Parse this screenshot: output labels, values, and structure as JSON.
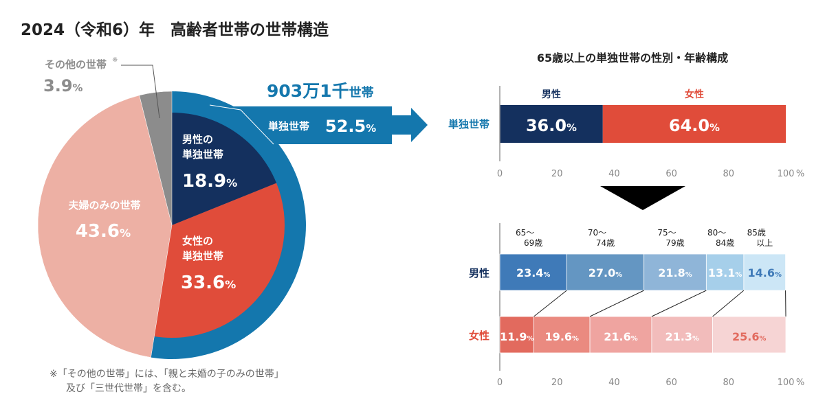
{
  "title": "2024（令和6）年　高齢者世帯の世帯構造",
  "footnote": [
    "※「その他の世帯」には、「親と未婚の子のみの世帯」",
    "及び「三世代世帯」を含む。"
  ],
  "chart_data": [
    {
      "type": "pie",
      "slices": [
        {
          "label": [
            "男性の",
            "単独世帯"
          ],
          "value": 18.9,
          "color": "#14305e"
        },
        {
          "label": [
            "女性の",
            "単独世帯"
          ],
          "value": 33.6,
          "color": "#e04c3a"
        },
        {
          "label": [
            "夫婦のみの世帯"
          ],
          "value": 43.6,
          "color": "#edb0a4"
        },
        {
          "label": [
            "その他の世帯"
          ],
          "value": 3.9,
          "color": "#8c8c8c",
          "mark": "※"
        }
      ],
      "ring": {
        "label": "単独世帯",
        "value": 52.5,
        "count": "903万1千",
        "count_unit": "世帯",
        "color": "#1477ad"
      }
    },
    {
      "type": "bar",
      "stacked": true,
      "orientation": "horizontal",
      "title": "65歳以上の単独世帯の性別・年齢構成",
      "categories": [
        "単独世帯"
      ],
      "series": [
        {
          "name": "男性",
          "values": [
            36.0
          ],
          "color": "#14305e"
        },
        {
          "name": "女性",
          "values": [
            64.0
          ],
          "color": "#e04c3a"
        }
      ],
      "xlim": [
        0,
        100
      ],
      "xticks": [
        "0",
        "20",
        "40",
        "60",
        "80",
        "100"
      ],
      "xunit": "%"
    },
    {
      "type": "bar",
      "stacked": true,
      "orientation": "horizontal",
      "categories": [
        "男性",
        "女性"
      ],
      "age_groups": [
        [
          "65～",
          "69歳"
        ],
        [
          "70～",
          "74歳"
        ],
        [
          "75～",
          "79歳"
        ],
        [
          "80～",
          "84歳"
        ],
        [
          "85歳",
          "以上"
        ]
      ],
      "male": {
        "values": [
          23.4,
          27.0,
          21.8,
          13.1,
          14.6
        ],
        "colors": [
          "#3f7ab8",
          "#6496c2",
          "#8fb5d8",
          "#a6cfea",
          "#cce6f6"
        ]
      },
      "female": {
        "values": [
          11.9,
          19.6,
          21.6,
          21.3,
          25.6
        ],
        "colors": [
          "#e26a5e",
          "#ea8a80",
          "#efa4a0",
          "#f2bcbb",
          "#f6d4d4"
        ]
      },
      "xlim": [
        0,
        100
      ],
      "xticks": [
        "0",
        "20",
        "40",
        "60",
        "80",
        "100"
      ],
      "xunit": "%"
    }
  ]
}
